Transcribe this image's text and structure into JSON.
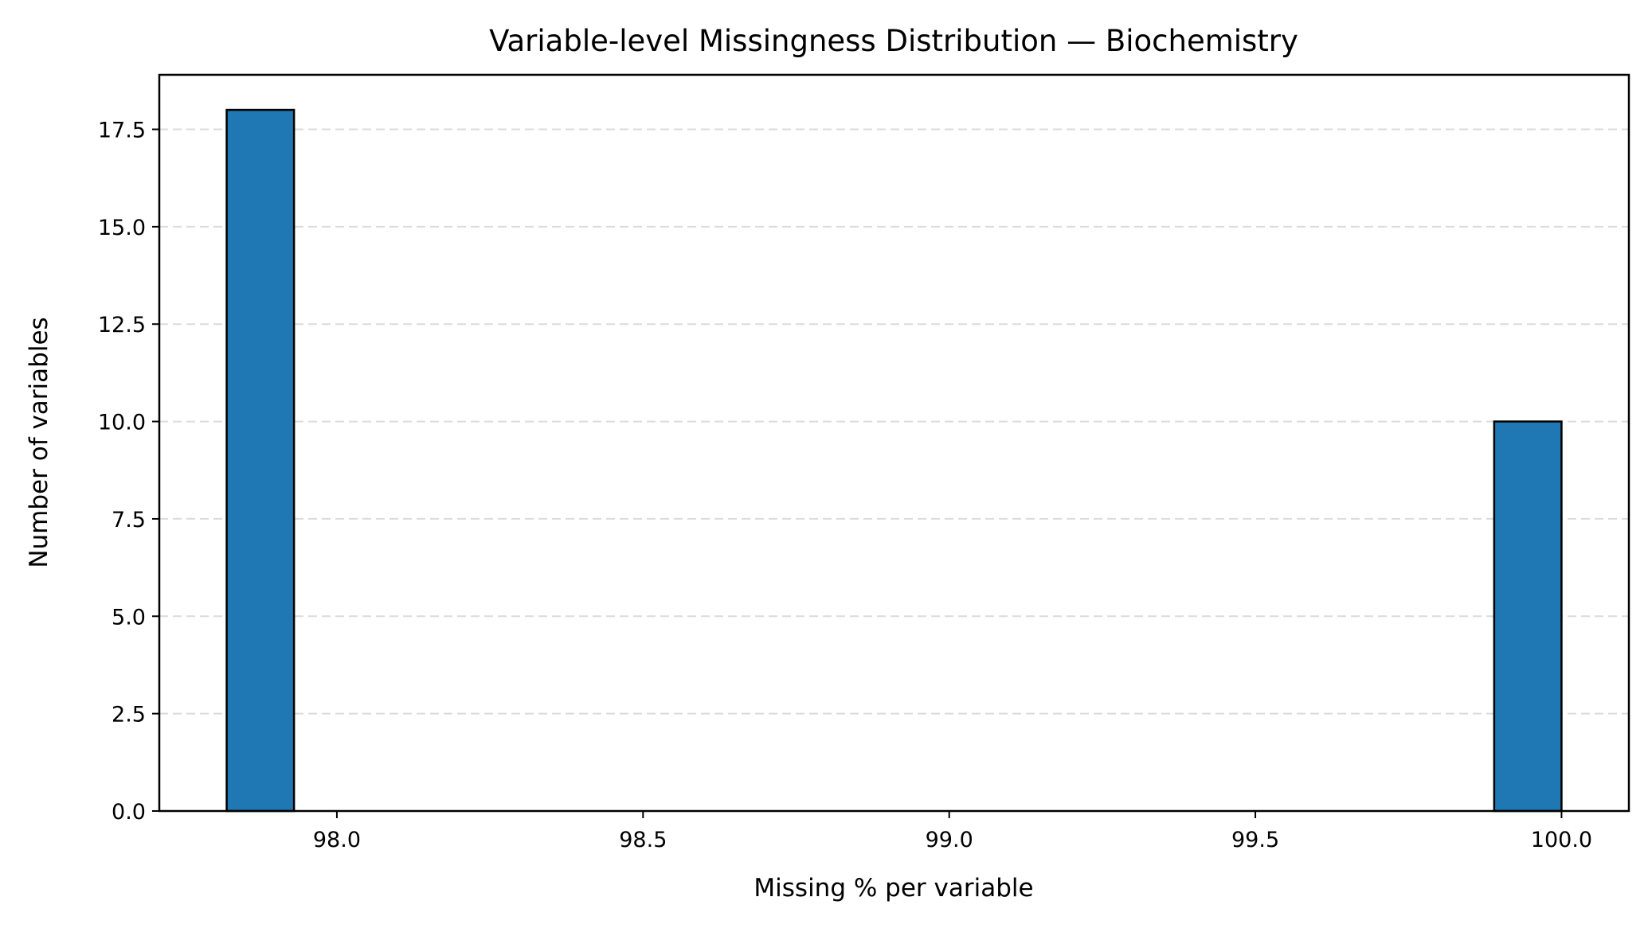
{
  "chart_data": {
    "type": "bar",
    "title": "Variable-level Missingness Distribution — Biochemistry",
    "xlabel": "Missing % per variable",
    "ylabel": "Number of variables",
    "xlim": [
      97.71,
      100.11
    ],
    "ylim": [
      0,
      18.9
    ],
    "xticks": [
      98.0,
      98.5,
      99.0,
      99.5,
      100.0
    ],
    "xtick_labels": [
      "98.0",
      "98.5",
      "99.0",
      "99.5",
      "100.0"
    ],
    "yticks": [
      0,
      2.5,
      5,
      7.5,
      10,
      12.5,
      15,
      17.5
    ],
    "ytick_labels": [
      "0.0",
      "2.5",
      "5.0",
      "7.5",
      "10.0",
      "12.5",
      "15.0",
      "17.5"
    ],
    "grid": "y-dashed",
    "bar_color": "#1f77b4",
    "bins": [
      {
        "x0": 97.82,
        "x1": 97.93,
        "count": 18
      },
      {
        "x0": 99.89,
        "x1": 100.0,
        "count": 10
      }
    ]
  }
}
